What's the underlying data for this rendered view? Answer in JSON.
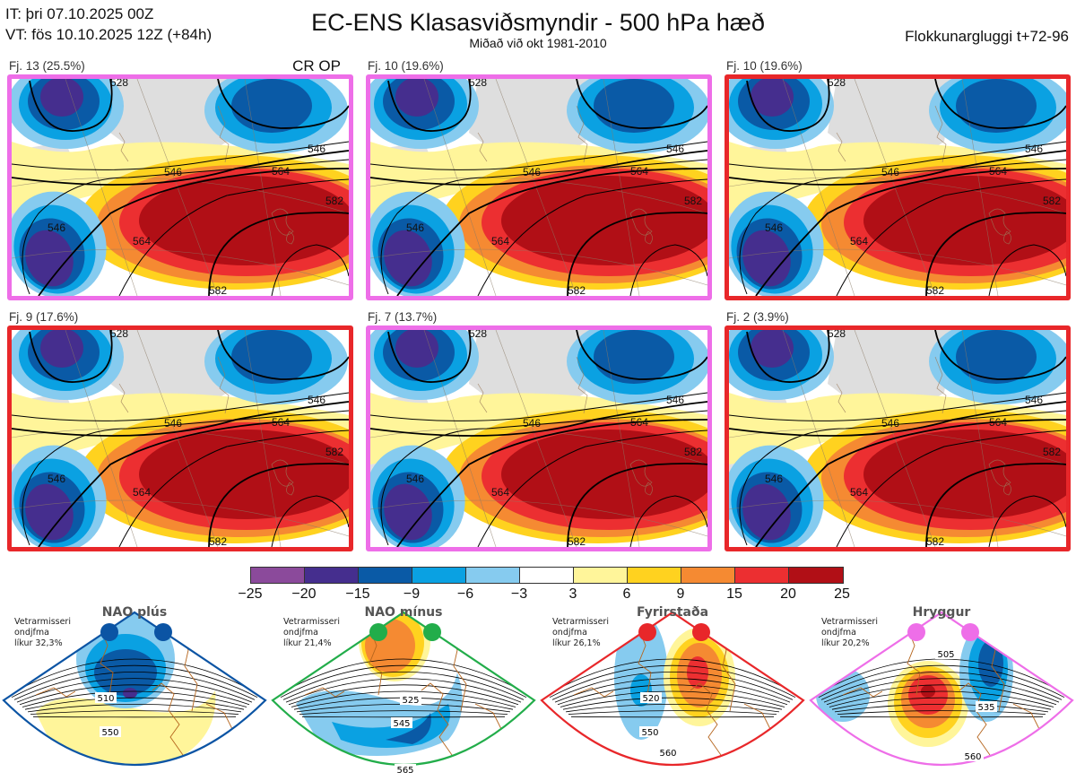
{
  "header": {
    "init_time": "IT: þri 07.10.2025 00Z",
    "valid_time": "VT: fös 10.10.2025 12Z  (+84h)",
    "title": "EC-ENS Klasasviðsmyndir - 500 hPa hæð",
    "subtitle": "Miðað við okt 1981-2010",
    "window": "Flokkunargluggi t+72-96"
  },
  "panels": [
    {
      "label": "Fj. 13 (25.5%)",
      "tag": "CR OP",
      "regime": "Hryggur",
      "border_color": "#ee6ee8",
      "contours": [
        "528",
        "546",
        "546",
        "564",
        "564",
        "582",
        "582",
        "546"
      ]
    },
    {
      "label": "Fj. 10 (19.6%)",
      "tag": "",
      "regime": "Hryggur",
      "border_color": "#ee6ee8",
      "contours": [
        "528",
        "546",
        "546",
        "564",
        "564",
        "582",
        "582",
        "546"
      ]
    },
    {
      "label": "Fj. 10 (19.6%)",
      "tag": "",
      "regime": "Fyrirstaða",
      "border_color": "#e8272a",
      "contours": [
        "528",
        "546",
        "546",
        "564",
        "564",
        "582",
        "582",
        "546"
      ]
    },
    {
      "label": "Fj. 9 (17.6%)",
      "tag": "",
      "regime": "Fyrirstaða",
      "border_color": "#e8272a",
      "contours": [
        "528",
        "546",
        "546",
        "564",
        "564",
        "582",
        "582",
        "546"
      ]
    },
    {
      "label": "Fj. 7 (13.7%)",
      "tag": "",
      "regime": "Hryggur",
      "border_color": "#ee6ee8",
      "contours": [
        "528",
        "546",
        "546",
        "564",
        "564",
        "582",
        "582",
        "546"
      ]
    },
    {
      "label": "Fj. 2 (3.9%)",
      "tag": "",
      "regime": "Fyrirstaða",
      "border_color": "#e8272a",
      "contours": [
        "528",
        "546",
        "546",
        "564",
        "564",
        "582",
        "582",
        "546"
      ]
    }
  ],
  "colorbar": {
    "unit_hint": "anomaly (dam)",
    "ticks": [
      "−25",
      "−20",
      "−15",
      "−9",
      "−6",
      "−3",
      "3",
      "6",
      "9",
      "15",
      "20",
      "25"
    ],
    "colors": [
      "#8b4a9b",
      "#452e8e",
      "#0a5aa6",
      "#0aa1e2",
      "#86cbef",
      "#ffffff",
      "#fff59a",
      "#ffd21f",
      "#f58a32",
      "#ec2f31",
      "#b10f16"
    ]
  },
  "regimes": [
    {
      "name": "NAO plús",
      "info": [
        "Vetrarmisseri",
        "ondjfma",
        "líkur 32,3%"
      ],
      "color": "#0b54a4",
      "contours": [
        "510",
        "550"
      ]
    },
    {
      "name": "NAO mínus",
      "info": [
        "Vetrarmisseri",
        "ondjfma",
        "líkur 21,4%"
      ],
      "color": "#22ad4a",
      "contours": [
        "525",
        "545",
        "565"
      ]
    },
    {
      "name": "Fyrirstaða",
      "info": [
        "Vetrarmisseri",
        "ondjfma",
        "líkur 26,1%"
      ],
      "color": "#e8272a",
      "contours": [
        "520",
        "550",
        "560"
      ]
    },
    {
      "name": "Hryggur",
      "info": [
        "Vetrarmisseri",
        "ondjfma",
        "líkur 20,2%"
      ],
      "color": "#ee6ee8",
      "contours": [
        "505",
        "535",
        "560"
      ]
    }
  ]
}
